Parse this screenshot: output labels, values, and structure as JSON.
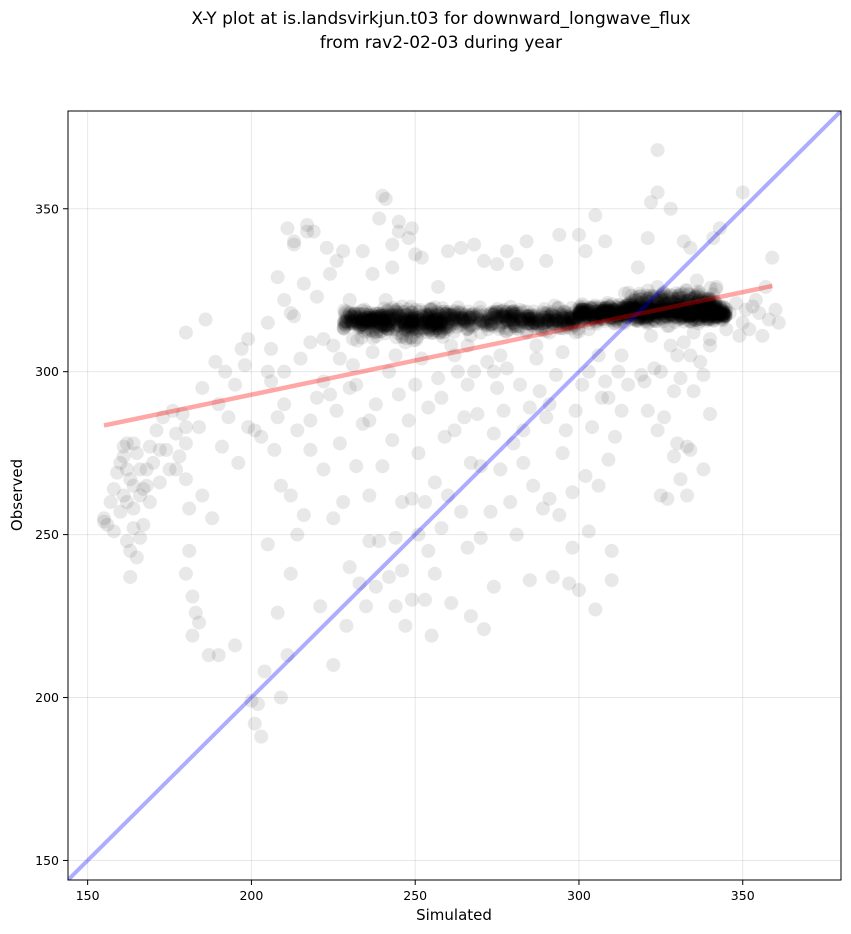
{
  "title": {
    "line1": "X-Y plot at is.landsvirkjun.t03 for downward_longwave_flux",
    "line2": "from rav2-02-03 during year"
  },
  "chart_data": {
    "type": "scatter",
    "xlabel": "Simulated",
    "ylabel": "Observed",
    "xlim": [
      144,
      380
    ],
    "ylim": [
      144,
      380
    ],
    "xticks": [
      150,
      200,
      250,
      300,
      350
    ],
    "yticks": [
      150,
      200,
      250,
      300,
      350
    ],
    "grid": true,
    "point_color": "#000000",
    "point_alpha": 0.09,
    "identity_line": {
      "color": "#0000ff",
      "alpha": 0.32,
      "from": [
        144,
        144
      ],
      "to": [
        380,
        380
      ]
    },
    "regression_line": {
      "color": "#ff0000",
      "alpha": 0.35,
      "from": [
        155,
        283.5
      ],
      "to": [
        359,
        326.3
      ]
    },
    "points": [
      [
        155,
        255
      ],
      [
        155,
        254
      ],
      [
        156,
        253
      ],
      [
        157,
        260
      ],
      [
        158,
        264
      ],
      [
        158,
        251
      ],
      [
        159,
        269
      ],
      [
        160,
        272
      ],
      [
        160,
        257
      ],
      [
        161,
        277
      ],
      [
        161,
        274
      ],
      [
        161,
        262
      ],
      [
        162,
        278
      ],
      [
        162,
        270
      ],
      [
        162,
        248
      ],
      [
        163,
        267
      ],
      [
        163,
        245
      ],
      [
        163,
        237
      ],
      [
        164,
        278
      ],
      [
        164,
        258
      ],
      [
        164,
        252
      ],
      [
        165,
        275
      ],
      [
        165,
        243
      ],
      [
        166,
        262
      ],
      [
        166,
        249
      ],
      [
        167,
        264
      ],
      [
        167,
        253
      ],
      [
        168,
        270
      ],
      [
        169,
        277
      ],
      [
        169,
        260
      ],
      [
        170,
        272
      ],
      [
        171,
        282
      ],
      [
        172,
        266
      ],
      [
        173,
        286
      ],
      [
        174,
        276
      ],
      [
        175,
        270
      ],
      [
        176,
        288
      ],
      [
        177,
        281
      ],
      [
        178,
        274
      ],
      [
        179,
        287
      ],
      [
        180,
        312
      ],
      [
        180,
        283
      ],
      [
        180,
        267
      ],
      [
        180,
        238
      ],
      [
        181,
        258
      ],
      [
        181,
        245
      ],
      [
        182,
        231
      ],
      [
        182,
        219
      ],
      [
        183,
        226
      ],
      [
        184,
        223
      ],
      [
        185,
        295
      ],
      [
        185,
        262
      ],
      [
        186,
        316
      ],
      [
        187,
        213
      ],
      [
        188,
        255
      ],
      [
        189,
        303
      ],
      [
        190,
        213
      ],
      [
        191,
        277
      ],
      [
        192,
        300
      ],
      [
        193,
        286
      ],
      [
        195,
        216
      ],
      [
        196,
        272
      ],
      [
        197,
        307
      ],
      [
        199,
        310
      ],
      [
        199,
        283
      ],
      [
        200,
        199
      ],
      [
        201,
        192
      ],
      [
        202,
        198
      ],
      [
        203,
        188
      ],
      [
        204,
        208
      ],
      [
        205,
        315
      ],
      [
        205,
        247
      ],
      [
        206,
        307
      ],
      [
        206,
        297
      ],
      [
        207,
        276
      ],
      [
        208,
        329
      ],
      [
        208,
        226
      ],
      [
        209,
        265
      ],
      [
        209,
        200
      ],
      [
        210,
        322
      ],
      [
        210,
        290
      ],
      [
        211,
        344
      ],
      [
        211,
        213
      ],
      [
        212,
        262
      ],
      [
        212,
        238
      ],
      [
        213,
        340
      ],
      [
        213,
        317
      ],
      [
        214,
        282
      ],
      [
        215,
        304
      ],
      [
        216,
        327
      ],
      [
        216,
        256
      ],
      [
        217,
        345
      ],
      [
        218,
        309
      ],
      [
        218,
        276
      ],
      [
        219,
        343
      ],
      [
        220,
        323
      ],
      [
        220,
        292
      ],
      [
        221,
        228
      ],
      [
        222,
        310
      ],
      [
        222,
        270
      ],
      [
        223,
        338
      ],
      [
        224,
        330
      ],
      [
        224,
        293
      ],
      [
        225,
        255
      ],
      [
        225,
        210
      ],
      [
        226,
        334
      ],
      [
        227,
        304
      ],
      [
        227,
        278
      ],
      [
        228,
        337
      ],
      [
        228,
        260
      ],
      [
        229,
        222
      ],
      [
        230,
        322
      ],
      [
        230,
        295
      ],
      [
        230,
        240
      ],
      [
        231,
        310
      ],
      [
        232,
        296
      ],
      [
        232,
        271
      ],
      [
        233,
        235
      ],
      [
        234,
        337
      ],
      [
        234,
        284
      ],
      [
        235,
        228
      ],
      [
        236,
        262
      ],
      [
        236,
        248
      ],
      [
        237,
        330
      ],
      [
        237,
        306
      ],
      [
        238,
        290
      ],
      [
        238,
        234
      ],
      [
        239,
        248
      ],
      [
        240,
        354
      ],
      [
        240,
        271
      ],
      [
        241,
        322
      ],
      [
        242,
        300
      ],
      [
        242,
        237
      ],
      [
        243,
        332
      ],
      [
        243,
        279
      ],
      [
        244,
        249
      ],
      [
        244,
        228
      ],
      [
        245,
        346
      ],
      [
        245,
        293
      ],
      [
        246,
        260
      ],
      [
        246,
        239
      ],
      [
        247,
        309
      ],
      [
        247,
        222
      ],
      [
        248,
        341
      ],
      [
        248,
        285
      ],
      [
        249,
        261
      ],
      [
        249,
        230
      ],
      [
        250,
        336
      ],
      [
        250,
        296
      ],
      [
        251,
        275
      ],
      [
        251,
        250
      ],
      [
        252,
        335
      ],
      [
        252,
        304
      ],
      [
        253,
        260
      ],
      [
        253,
        230
      ],
      [
        254,
        289
      ],
      [
        254,
        245
      ],
      [
        255,
        219
      ],
      [
        256,
        266
      ],
      [
        256,
        238
      ],
      [
        257,
        326
      ],
      [
        257,
        298
      ],
      [
        258,
        252
      ],
      [
        259,
        280
      ],
      [
        260,
        337
      ],
      [
        260,
        262
      ],
      [
        261,
        308
      ],
      [
        261,
        229
      ],
      [
        262,
        282
      ],
      [
        263,
        300
      ],
      [
        264,
        338
      ],
      [
        264,
        257
      ],
      [
        265,
        286
      ],
      [
        266,
        308
      ],
      [
        266,
        246
      ],
      [
        267,
        272
      ],
      [
        267,
        225
      ],
      [
        268,
        339
      ],
      [
        268,
        300
      ],
      [
        269,
        287
      ],
      [
        270,
        271
      ],
      [
        270,
        249
      ],
      [
        271,
        334
      ],
      [
        271,
        221
      ],
      [
        272,
        303
      ],
      [
        273,
        257
      ],
      [
        274,
        281
      ],
      [
        274,
        234
      ],
      [
        275,
        333
      ],
      [
        275,
        295
      ],
      [
        276,
        270
      ],
      [
        277,
        288
      ],
      [
        278,
        337
      ],
      [
        278,
        301
      ],
      [
        279,
        260
      ],
      [
        280,
        278
      ],
      [
        281,
        333
      ],
      [
        281,
        250
      ],
      [
        282,
        296
      ],
      [
        283,
        272
      ],
      [
        284,
        340
      ],
      [
        285,
        289
      ],
      [
        285,
        236
      ],
      [
        286,
        265
      ],
      [
        287,
        304
      ],
      [
        288,
        294
      ],
      [
        289,
        258
      ],
      [
        290,
        334
      ],
      [
        290,
        286
      ],
      [
        291,
        312
      ],
      [
        291,
        261
      ],
      [
        292,
        237
      ],
      [
        293,
        299
      ],
      [
        294,
        342
      ],
      [
        294,
        256
      ],
      [
        295,
        275
      ],
      [
        296,
        282
      ],
      [
        297,
        235
      ],
      [
        298,
        263
      ],
      [
        298,
        246
      ],
      [
        299,
        288
      ],
      [
        300,
        342
      ],
      [
        300,
        233
      ],
      [
        301,
        296
      ],
      [
        302,
        337
      ],
      [
        302,
        268
      ],
      [
        303,
        313
      ],
      [
        303,
        251
      ],
      [
        304,
        283
      ],
      [
        305,
        348
      ],
      [
        305,
        227
      ],
      [
        306,
        265
      ],
      [
        307,
        292
      ],
      [
        308,
        340
      ],
      [
        308,
        297
      ],
      [
        309,
        273
      ],
      [
        310,
        245
      ],
      [
        310,
        236
      ],
      [
        311,
        280
      ],
      [
        311,
        315
      ],
      [
        312,
        300
      ],
      [
        313,
        288
      ],
      [
        314,
        324
      ],
      [
        315,
        296
      ],
      [
        316,
        321
      ],
      [
        318,
        332
      ],
      [
        319,
        319
      ],
      [
        320,
        297
      ],
      [
        321,
        341
      ],
      [
        321,
        288
      ],
      [
        322,
        352
      ],
      [
        322,
        311
      ],
      [
        323,
        301
      ],
      [
        324,
        368
      ],
      [
        324,
        355
      ],
      [
        324,
        326
      ],
      [
        324,
        282
      ],
      [
        325,
        300
      ],
      [
        325,
        262
      ],
      [
        326,
        286
      ],
      [
        327,
        314
      ],
      [
        327,
        261
      ],
      [
        328,
        350
      ],
      [
        328,
        308
      ],
      [
        329,
        294
      ],
      [
        329,
        274
      ],
      [
        330,
        318
      ],
      [
        330,
        278
      ],
      [
        331,
        298
      ],
      [
        331,
        267
      ],
      [
        332,
        340
      ],
      [
        332,
        309
      ],
      [
        333,
        277
      ],
      [
        333,
        262
      ],
      [
        334,
        338
      ],
      [
        334,
        276
      ],
      [
        335,
        294
      ],
      [
        335,
        312
      ],
      [
        336,
        328
      ],
      [
        337,
        320
      ],
      [
        338,
        299
      ],
      [
        338,
        270
      ],
      [
        339,
        318
      ],
      [
        340,
        308
      ],
      [
        340,
        287
      ],
      [
        341,
        341
      ],
      [
        341,
        322
      ],
      [
        342,
        326
      ],
      [
        343,
        344
      ],
      [
        344,
        320
      ],
      [
        345,
        313
      ],
      [
        346,
        318
      ],
      [
        348,
        321
      ],
      [
        349,
        311
      ],
      [
        350,
        355
      ],
      [
        350,
        315
      ],
      [
        351,
        319
      ],
      [
        352,
        313
      ],
      [
        353,
        320
      ],
      [
        354,
        322
      ],
      [
        355,
        318
      ],
      [
        356,
        311
      ],
      [
        357,
        326
      ],
      [
        358,
        316
      ],
      [
        359,
        335
      ],
      [
        360,
        319
      ],
      [
        361,
        315
      ],
      [
        213,
        339
      ],
      [
        217,
        343
      ],
      [
        239,
        347
      ],
      [
        243,
        339
      ],
      [
        245,
        343
      ],
      [
        249,
        344
      ],
      [
        241,
        353
      ],
      [
        212,
        318
      ],
      [
        210,
        300
      ],
      [
        208,
        286
      ],
      [
        205,
        300
      ],
      [
        201,
        282
      ],
      [
        203,
        280
      ],
      [
        198,
        302
      ],
      [
        195,
        296
      ],
      [
        190,
        290
      ],
      [
        184,
        283
      ],
      [
        180,
        278
      ],
      [
        177,
        270
      ],
      [
        172,
        276
      ],
      [
        168,
        265
      ],
      [
        166,
        270
      ],
      [
        164,
        265
      ],
      [
        162,
        260
      ],
      [
        214,
        250
      ],
      [
        218,
        285
      ],
      [
        222,
        297
      ],
      [
        225,
        308
      ],
      [
        226,
        288
      ],
      [
        231,
        302
      ],
      [
        236,
        285
      ],
      [
        238,
        312
      ],
      [
        244,
        305
      ],
      [
        246,
        320
      ],
      [
        252,
        312
      ],
      [
        255,
        318
      ],
      [
        258,
        292
      ],
      [
        262,
        305
      ],
      [
        266,
        296
      ],
      [
        270,
        312
      ],
      [
        274,
        300
      ],
      [
        276,
        305
      ],
      [
        280,
        315
      ],
      [
        283,
        282
      ],
      [
        287,
        308
      ],
      [
        291,
        290
      ],
      [
        295,
        306
      ],
      [
        299,
        312
      ],
      [
        303,
        300
      ],
      [
        306,
        305
      ],
      [
        309,
        292
      ],
      [
        313,
        305
      ],
      [
        317,
        316
      ],
      [
        319,
        299
      ],
      [
        323,
        316
      ],
      [
        326,
        322
      ],
      [
        330,
        305
      ],
      [
        334,
        305
      ],
      [
        337,
        303
      ],
      [
        340,
        310
      ]
    ],
    "clusters": [
      {
        "x_range": [
          228,
          300
        ],
        "y_center": 316,
        "y_spread": 3.4,
        "count": 720
      },
      {
        "x_range": [
          300,
          345
        ],
        "y_center": 318,
        "y_spread": 2.6,
        "count": 780
      },
      {
        "x_range": [
          232,
          260
        ],
        "y_center": 315,
        "y_spread": 4.5,
        "count": 220
      },
      {
        "x_range": [
          315,
          342
        ],
        "y_center": 321,
        "y_spread": 3.8,
        "count": 260
      }
    ]
  }
}
